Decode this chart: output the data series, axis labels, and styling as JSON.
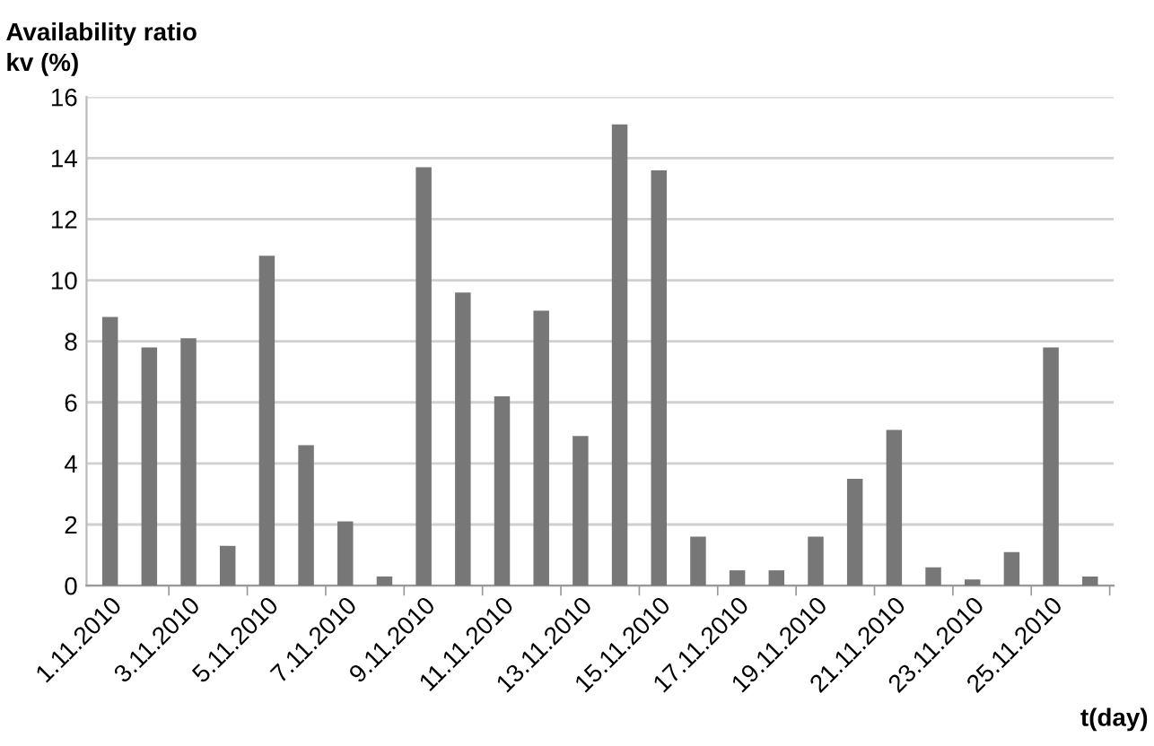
{
  "chart_data": {
    "type": "bar",
    "ylabel": "Availability ratio\nkv (%)",
    "xlabel": "t(day)",
    "categories": [
      "1.11.2010",
      null,
      "3.11.2010",
      null,
      "5.11.2010",
      null,
      "7.11.2010",
      null,
      "9.11.2010",
      null,
      "11.11.2010",
      null,
      "13.11.2010",
      null,
      "15.11.2010",
      null,
      "17.11.2010",
      null,
      "19.11.2010",
      null,
      "21.11.2010",
      null,
      "23.11.2010",
      null,
      "25.11.2010",
      null
    ],
    "values": [
      8.8,
      7.8,
      8.1,
      1.3,
      10.8,
      4.6,
      2.1,
      0.3,
      13.7,
      9.6,
      6.2,
      9.0,
      4.9,
      15.1,
      13.6,
      1.6,
      0.5,
      0.5,
      1.6,
      3.5,
      5.1,
      0.6,
      0.2,
      1.1,
      7.8,
      0.3
    ],
    "color": "#777777",
    "ylim": [
      0,
      16
    ],
    "yticks": [
      0,
      2,
      4,
      6,
      8,
      10,
      12,
      14,
      16
    ],
    "grid": "y",
    "legend": false
  }
}
